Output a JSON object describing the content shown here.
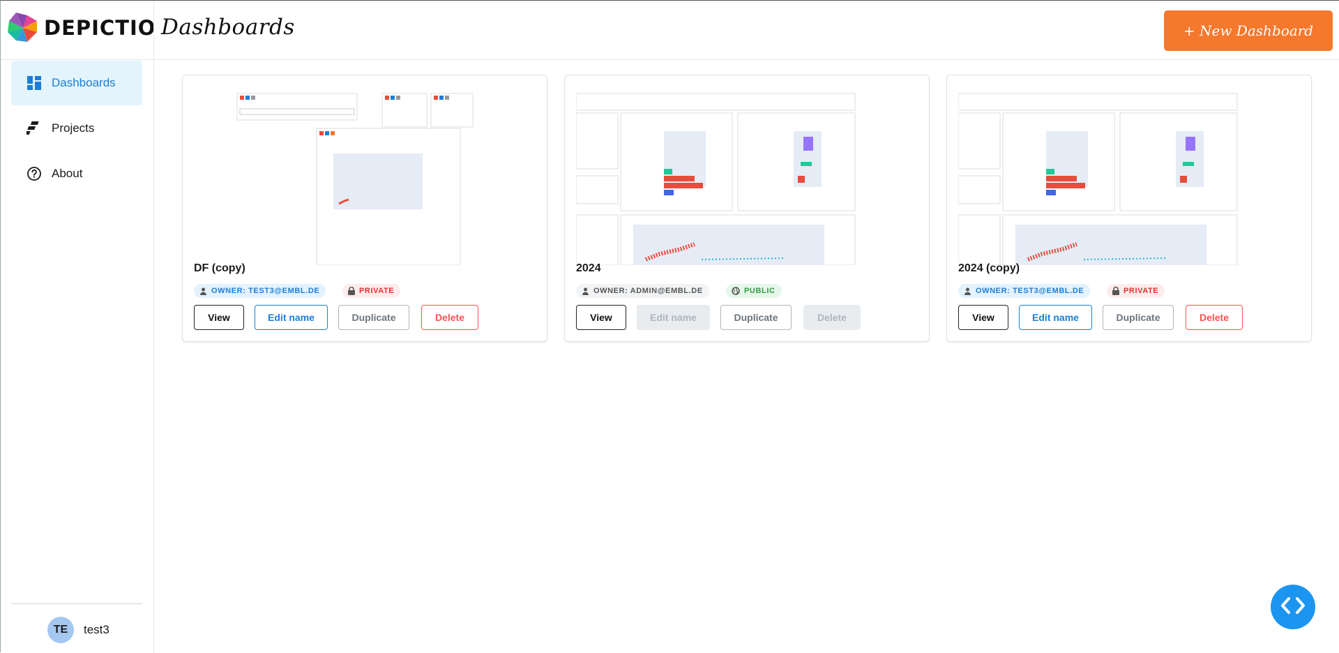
{
  "app": {
    "name": "DEPICTIO",
    "page_title": "Dashboards",
    "new_button": "+ New Dashboard"
  },
  "sidebar": {
    "items": [
      {
        "label": "Dashboards",
        "icon": "dashboard-grid-icon",
        "active": true
      },
      {
        "label": "Projects",
        "icon": "projects-icon",
        "active": false
      },
      {
        "label": "About",
        "icon": "help-circle-icon",
        "active": false
      }
    ],
    "user": {
      "initials": "TE",
      "name": "test3"
    }
  },
  "cards": [
    {
      "title": "DF (copy)",
      "owner": "OWNER: TEST3@EMBL.DE",
      "visibility": "PRIVATE",
      "buttons": {
        "view": "View",
        "edit": "Edit name",
        "duplicate": "Duplicate",
        "delete": "Delete"
      },
      "edit_enabled": true,
      "delete_enabled": true
    },
    {
      "title": "2024",
      "owner": "OWNER: ADMIN@EMBL.DE",
      "visibility": "PUBLIC",
      "buttons": {
        "view": "View",
        "edit": "Edit name",
        "duplicate": "Duplicate",
        "delete": "Delete"
      },
      "edit_enabled": false,
      "delete_enabled": false
    },
    {
      "title": "2024 (copy)",
      "owner": "OWNER: TEST3@EMBL.DE",
      "visibility": "PRIVATE",
      "buttons": {
        "view": "View",
        "edit": "Edit name",
        "duplicate": "Duplicate",
        "delete": "Delete"
      },
      "edit_enabled": true,
      "delete_enabled": true
    }
  ],
  "colors": {
    "accent": "#1c7ed6",
    "brand_orange": "#f5782d",
    "private_red": "#e03131",
    "public_green": "#2f9e44",
    "fab_blue": "#1c95f0"
  }
}
